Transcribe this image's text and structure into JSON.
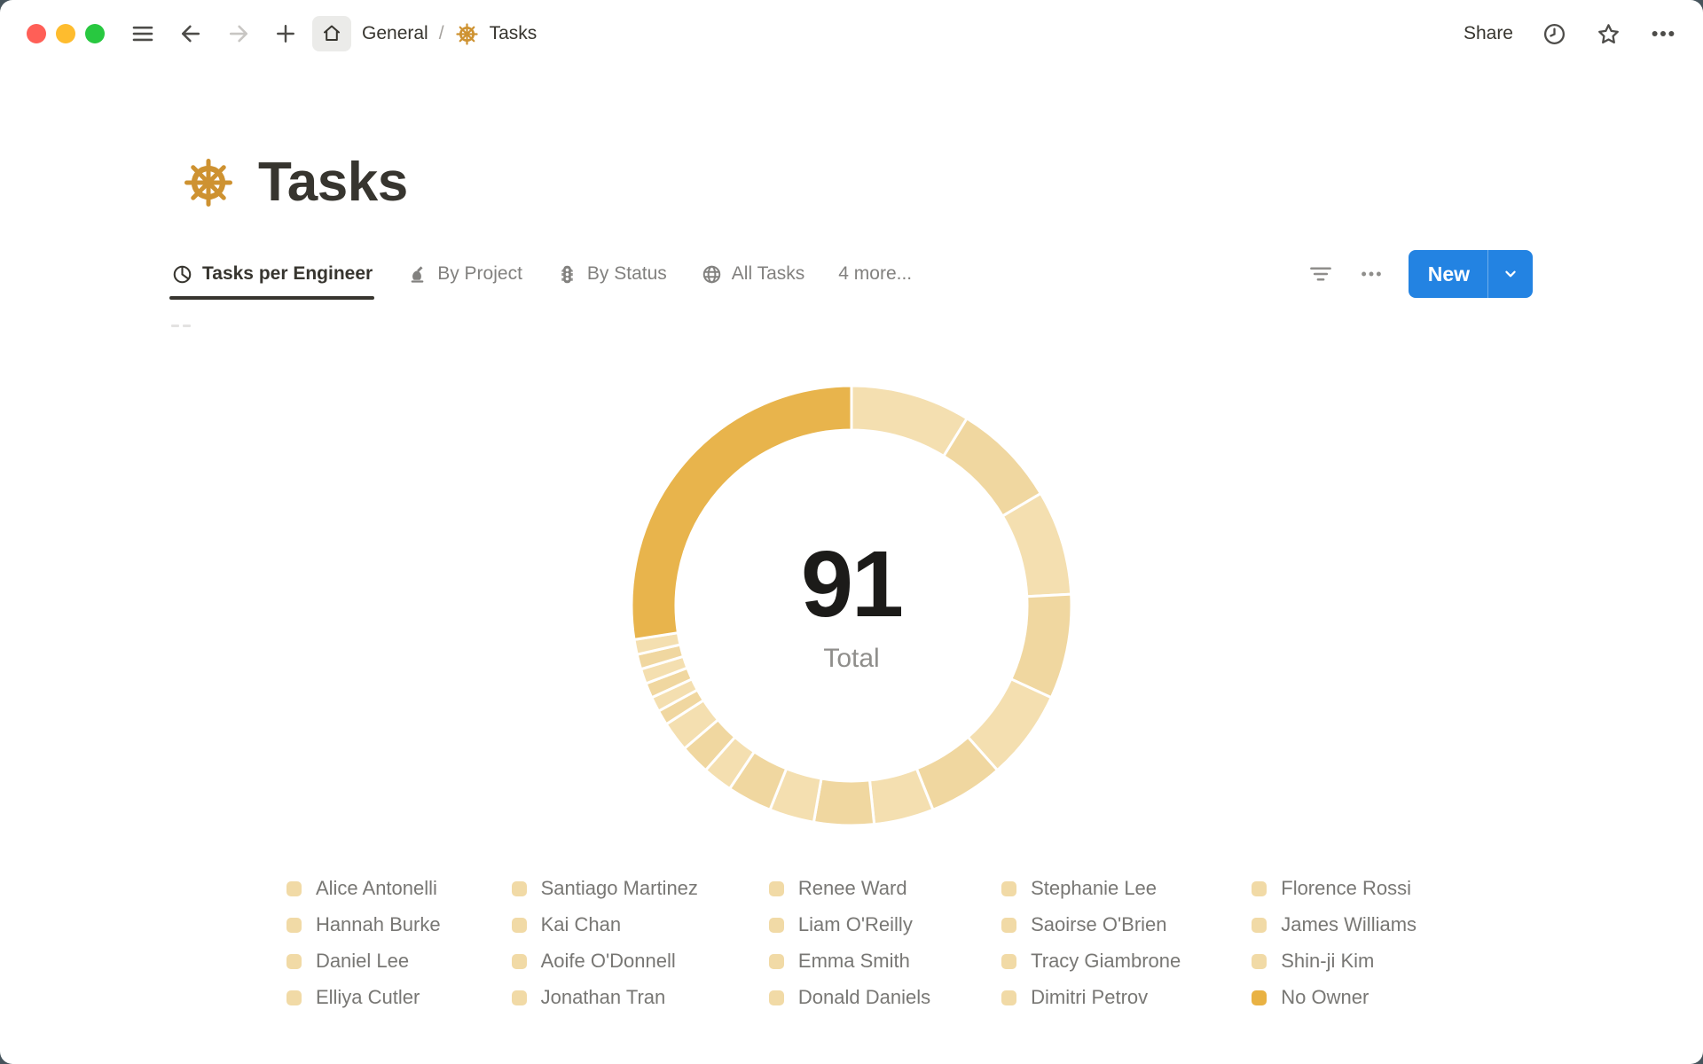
{
  "topbar": {
    "breadcrumb": {
      "workspace": "General",
      "separator": "/",
      "page": "Tasks"
    },
    "share_label": "Share"
  },
  "page": {
    "title": "Tasks",
    "icon": "ship-wheel-icon"
  },
  "view_tabs": [
    {
      "label": "Tasks per Engineer",
      "icon": "pie-chart-icon",
      "active": true
    },
    {
      "label": "By Project",
      "icon": "ink-bottle-icon",
      "active": false
    },
    {
      "label": "By Status",
      "icon": "traffic-light-icon",
      "active": false
    },
    {
      "label": "All Tasks",
      "icon": "globe-icon",
      "active": false
    },
    {
      "label": "4 more...",
      "icon": null,
      "active": false
    }
  ],
  "controls": {
    "new_label": "New"
  },
  "icons": {
    "topbar": [
      "hamburger",
      "arrow-left",
      "arrow-right",
      "plus",
      "home",
      "ship-wheel"
    ],
    "topbar_right": [
      "clock",
      "star",
      "ellipsis"
    ],
    "tab_controls": [
      "filter-lines",
      "ellipsis",
      "chevron-down"
    ]
  },
  "colors": {
    "accent_blue": "#2383e2",
    "slice_tan_a": "#f4dfb0",
    "slice_tan_b": "#f0d7a0",
    "slice_gold": "#e8b44c",
    "legend_tan": "#f1daa6",
    "legend_gold": "#e9b243",
    "wheel_amber": "#ce9231"
  },
  "chart_data": {
    "type": "pie",
    "variant": "donut",
    "title": "Tasks per Engineer",
    "center_value": "91",
    "center_label": "Total",
    "start_angle_deg": 0,
    "direction": "clockwise",
    "legend_position": "bottom",
    "legend_columns": 5,
    "legend_rows": 4,
    "categories": [
      "Alice Antonelli",
      "Hannah Burke",
      "Daniel Lee",
      "Elliya Cutler",
      "Santiago Martinez",
      "Kai Chan",
      "Aoife O'Donnell",
      "Jonathan Tran",
      "Renee Ward",
      "Liam O'Reilly",
      "Emma Smith",
      "Donald Daniels",
      "Stephanie Lee",
      "Saoirse O'Brien",
      "Tracy Giambrone",
      "Dimitri Petrov",
      "Florence Rossi",
      "James Williams",
      "Shin-ji Kim",
      "No Owner"
    ],
    "values": [
      8,
      7,
      7,
      7,
      6,
      5,
      4,
      4,
      3,
      3,
      2,
      2,
      2,
      1,
      1,
      1,
      1,
      1,
      1,
      25
    ],
    "total": 91
  }
}
